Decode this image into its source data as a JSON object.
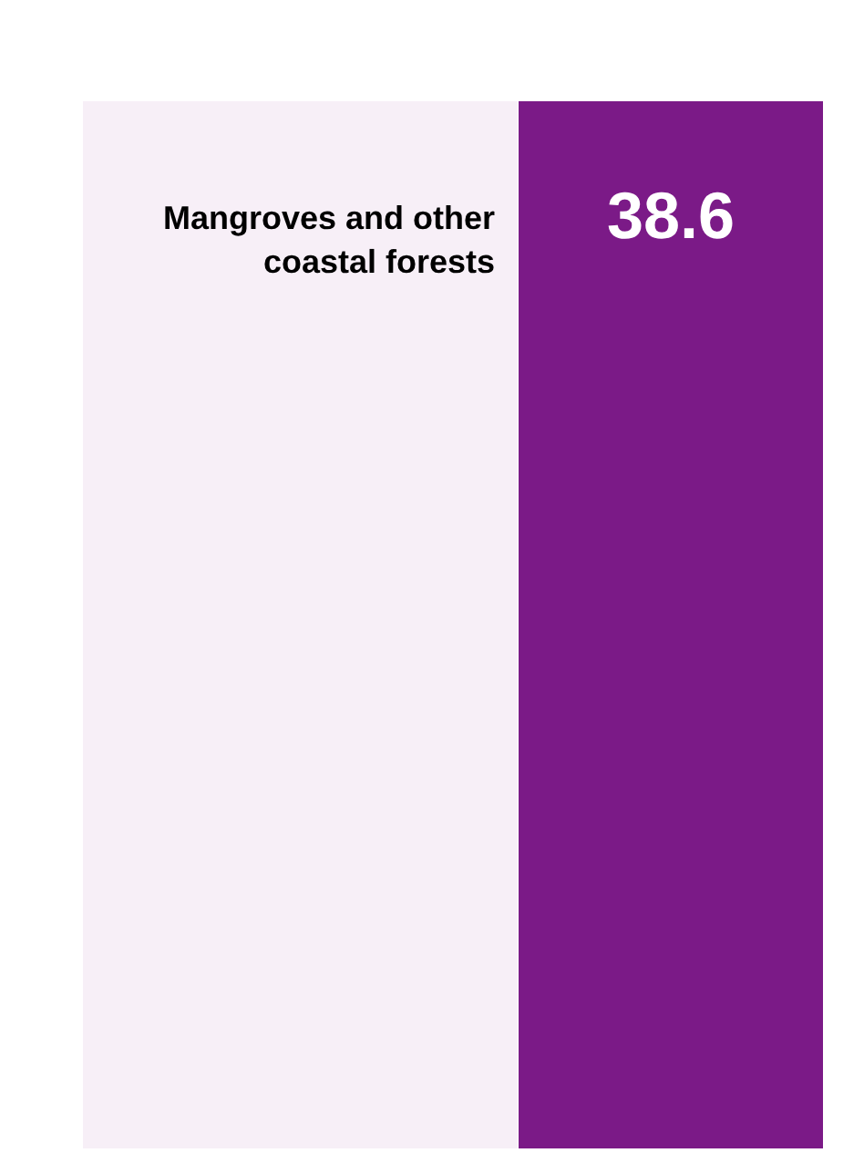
{
  "chart_data": {
    "type": "other",
    "categories": [
      "Mangroves and other coastal forests"
    ],
    "values": [
      38.6
    ],
    "color": "#7b1a87",
    "data_labels": true
  }
}
